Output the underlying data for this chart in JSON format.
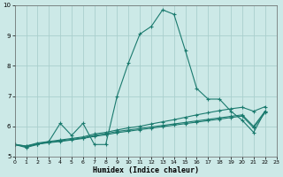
{
  "xlabel": "Humidex (Indice chaleur)",
  "xlim": [
    0,
    23
  ],
  "ylim": [
    5,
    10
  ],
  "yticks": [
    5,
    6,
    7,
    8,
    9,
    10
  ],
  "xticks": [
    0,
    1,
    2,
    3,
    4,
    5,
    6,
    7,
    8,
    9,
    10,
    11,
    12,
    13,
    14,
    15,
    16,
    17,
    18,
    19,
    20,
    21,
    22,
    23
  ],
  "background_color": "#cce9e7",
  "grid_color": "#aacfcd",
  "line_color": "#1a7a6e",
  "line1_x": [
    0,
    1,
    2,
    3,
    4,
    5,
    6,
    7,
    8,
    9,
    10,
    11,
    12,
    13,
    14,
    15,
    16,
    17,
    18,
    19,
    20,
    21,
    22
  ],
  "line1_y": [
    5.4,
    5.3,
    5.4,
    5.5,
    6.1,
    5.7,
    6.1,
    5.4,
    5.4,
    7.0,
    8.1,
    9.05,
    9.3,
    9.85,
    9.7,
    8.5,
    7.25,
    6.9,
    6.9,
    6.5,
    6.2,
    5.8,
    6.5
  ],
  "line2_x": [
    0,
    1,
    2,
    3,
    4,
    5,
    6,
    7,
    8,
    9,
    10,
    11,
    12,
    13,
    14,
    15,
    16,
    17,
    18,
    19,
    20,
    21,
    22
  ],
  "line2_y": [
    5.4,
    5.35,
    5.45,
    5.5,
    5.55,
    5.6,
    5.65,
    5.75,
    5.8,
    5.88,
    5.95,
    6.0,
    6.08,
    6.15,
    6.22,
    6.3,
    6.38,
    6.45,
    6.52,
    6.58,
    6.63,
    6.5,
    6.65
  ],
  "line3_x": [
    0,
    1,
    2,
    3,
    4,
    5,
    6,
    7,
    8,
    9,
    10,
    11,
    12,
    13,
    14,
    15,
    16,
    17,
    18,
    19,
    20,
    21,
    22
  ],
  "line3_y": [
    5.4,
    5.35,
    5.42,
    5.48,
    5.52,
    5.57,
    5.62,
    5.7,
    5.76,
    5.83,
    5.88,
    5.93,
    5.98,
    6.03,
    6.08,
    6.13,
    6.18,
    6.23,
    6.28,
    6.33,
    6.38,
    6.0,
    6.5
  ],
  "line4_x": [
    0,
    1,
    2,
    3,
    4,
    5,
    6,
    7,
    8,
    9,
    10,
    11,
    12,
    13,
    14,
    15,
    16,
    17,
    18,
    19,
    20,
    21,
    22
  ],
  "line4_y": [
    5.4,
    5.33,
    5.41,
    5.46,
    5.5,
    5.55,
    5.6,
    5.67,
    5.72,
    5.79,
    5.84,
    5.89,
    5.94,
    5.99,
    6.04,
    6.09,
    6.14,
    6.19,
    6.24,
    6.29,
    6.34,
    5.95,
    6.45
  ]
}
